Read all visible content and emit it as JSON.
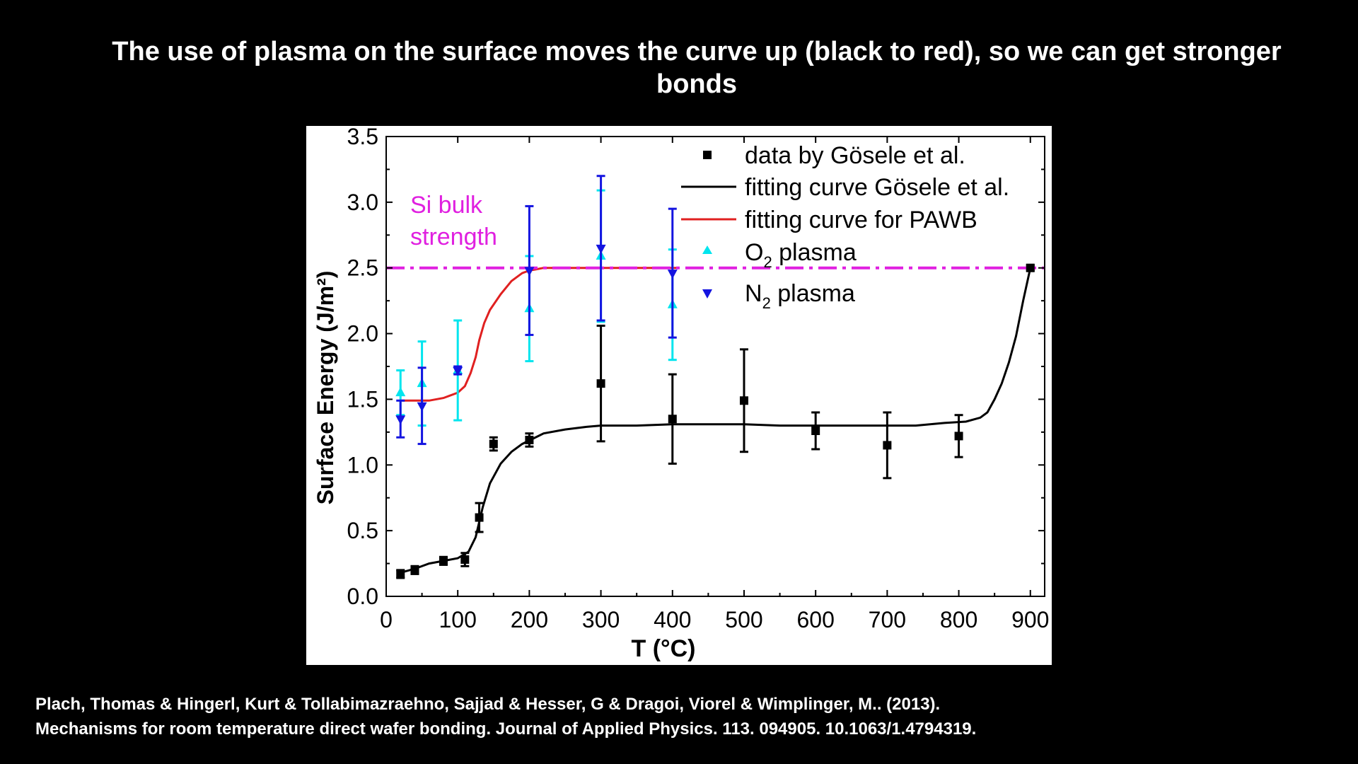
{
  "slide": {
    "title": "The use of plasma on the surface moves the curve up (black to red), so we can get stronger bonds",
    "citation_line1": "Plach, Thomas & Hingerl, Kurt & Tollabimazraehno, Sajjad & Hesser, G & Dragoi, Viorel & Wimplinger, M.. (2013).",
    "citation_line2": "Mechanisms for room temperature direct wafer bonding. Journal of Applied Physics. 113. 094905. 10.1063/1.4794319."
  },
  "chart_data": {
    "type": "scatter",
    "xlabel": "T (°C)",
    "ylabel": "Surface Energy (J/m²)",
    "xlim": [
      0,
      920
    ],
    "ylim": [
      0,
      3.5
    ],
    "xticks": [
      0,
      100,
      200,
      300,
      400,
      500,
      600,
      700,
      800,
      900
    ],
    "yticks": [
      "0.0",
      "0.5",
      "1.0",
      "1.5",
      "2.0",
      "2.5",
      "3.0",
      "3.5"
    ],
    "grid": false,
    "legend_position": "top-right",
    "annotation": {
      "text_line1": "Si bulk",
      "text_line2": "strength",
      "color": "#e020e0"
    },
    "reference_line": {
      "y": 2.5,
      "style": "dash-dot",
      "color": "#e020e0"
    },
    "legend": [
      {
        "label": "data by Gösele et al.",
        "marker": "square",
        "color": "#000000"
      },
      {
        "label": "fitting curve Gösele et al.",
        "marker": "line",
        "color": "#000000"
      },
      {
        "label": "fitting curve for PAWB",
        "marker": "line",
        "color": "#e02020"
      },
      {
        "label_main": "O",
        "label_sub": "2",
        "label_rest": " plasma",
        "marker": "triangle-up",
        "color": "#00e5ee"
      },
      {
        "label_main": "N",
        "label_sub": "2",
        "label_rest": " plasma",
        "marker": "triangle-down",
        "color": "#1414e0"
      }
    ],
    "series": [
      {
        "name": "data by Gösele et al.",
        "marker": "square",
        "color": "#000000",
        "points": [
          {
            "x": 20,
            "y": 0.17,
            "err": 0.03
          },
          {
            "x": 40,
            "y": 0.2,
            "err": 0.03
          },
          {
            "x": 80,
            "y": 0.27,
            "err": 0.03
          },
          {
            "x": 110,
            "y": 0.28,
            "err": 0.05
          },
          {
            "x": 130,
            "y": 0.6,
            "err": 0.11
          },
          {
            "x": 150,
            "y": 1.16,
            "err": 0.05
          },
          {
            "x": 200,
            "y": 1.19,
            "err": 0.05
          },
          {
            "x": 300,
            "y": 1.62,
            "err": 0.44
          },
          {
            "x": 400,
            "y": 1.35,
            "err": 0.34
          },
          {
            "x": 500,
            "y": 1.49,
            "err": 0.39
          },
          {
            "x": 600,
            "y": 1.26,
            "err": 0.14
          },
          {
            "x": 700,
            "y": 1.15,
            "err": 0.25
          },
          {
            "x": 800,
            "y": 1.22,
            "err": 0.16
          },
          {
            "x": 900,
            "y": 2.5,
            "err": 0.02
          }
        ]
      },
      {
        "name": "O2 plasma",
        "marker": "triangle-up",
        "color": "#00e5ee",
        "points": [
          {
            "x": 20,
            "y": 1.55,
            "err": 0.17
          },
          {
            "x": 50,
            "y": 1.62,
            "err": 0.32
          },
          {
            "x": 100,
            "y": 1.72,
            "err": 0.38
          },
          {
            "x": 200,
            "y": 2.19,
            "err": 0.4
          },
          {
            "x": 300,
            "y": 2.59,
            "err": 0.5
          },
          {
            "x": 400,
            "y": 2.22,
            "err": 0.42
          }
        ]
      },
      {
        "name": "N2 plasma",
        "marker": "triangle-down",
        "color": "#1414e0",
        "points": [
          {
            "x": 20,
            "y": 1.35,
            "err": 0.14
          },
          {
            "x": 50,
            "y": 1.45,
            "err": 0.29
          },
          {
            "x": 100,
            "y": 1.72,
            "err": 0.03
          },
          {
            "x": 200,
            "y": 2.48,
            "err": 0.49
          },
          {
            "x": 300,
            "y": 2.65,
            "err": 0.55
          },
          {
            "x": 400,
            "y": 2.46,
            "err": 0.49
          }
        ]
      }
    ],
    "curves": [
      {
        "name": "fitting curve Gösele et al.",
        "color": "#000000",
        "x": [
          20,
          40,
          60,
          80,
          100,
          115,
          125,
          135,
          145,
          160,
          175,
          190,
          205,
          220,
          250,
          280,
          300,
          350,
          400,
          450,
          500,
          550,
          600,
          650,
          700,
          740,
          780,
          810,
          830,
          840,
          850,
          860,
          870,
          880,
          890,
          900
        ],
        "y": [
          0.18,
          0.21,
          0.25,
          0.27,
          0.29,
          0.34,
          0.45,
          0.68,
          0.86,
          1.01,
          1.1,
          1.16,
          1.2,
          1.24,
          1.27,
          1.29,
          1.3,
          1.3,
          1.31,
          1.31,
          1.31,
          1.3,
          1.3,
          1.3,
          1.3,
          1.3,
          1.32,
          1.33,
          1.36,
          1.4,
          1.5,
          1.62,
          1.78,
          1.98,
          2.25,
          2.5
        ]
      },
      {
        "name": "fitting curve for PAWB",
        "color": "#e02020",
        "x": [
          20,
          40,
          60,
          80,
          100,
          110,
          118,
          125,
          130,
          137,
          145,
          160,
          175,
          190,
          200,
          210,
          220,
          250,
          300,
          350,
          400,
          410
        ],
        "y": [
          1.49,
          1.49,
          1.49,
          1.51,
          1.55,
          1.6,
          1.7,
          1.82,
          1.95,
          2.08,
          2.18,
          2.3,
          2.4,
          2.46,
          2.48,
          2.49,
          2.5,
          2.5,
          2.5,
          2.5,
          2.5,
          2.5
        ]
      }
    ]
  }
}
